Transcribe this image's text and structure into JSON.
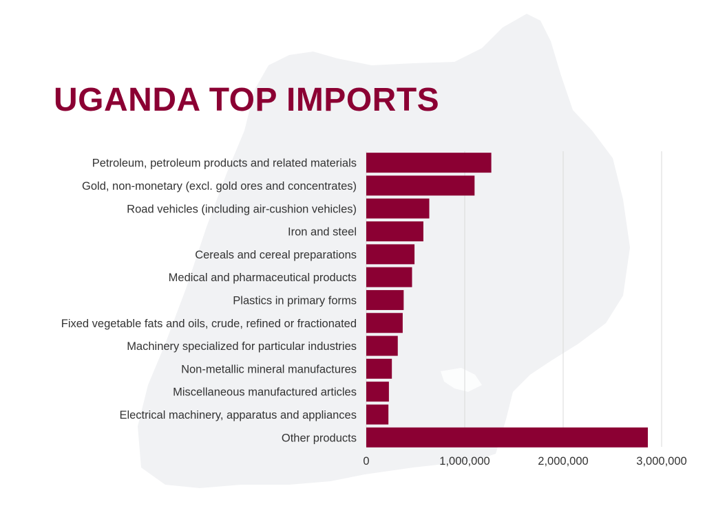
{
  "title": "UGANDA TOP IMPORTS",
  "colors": {
    "title": "#8b0033",
    "bar": "#8b0033",
    "map": "#f1f2f4",
    "text": "#333333"
  },
  "background_image": "uganda-map-silhouette",
  "chart_data": {
    "type": "bar",
    "orientation": "horizontal",
    "title": "UGANDA TOP IMPORTS",
    "xlabel": "",
    "ylabel": "",
    "xlim": [
      0,
      3000000
    ],
    "xticks": [
      0,
      1000000,
      2000000,
      3000000
    ],
    "xtick_labels": [
      "0",
      "1,000,000",
      "2,000,000",
      "3,000,000"
    ],
    "grid": true,
    "legend": "none",
    "categories": [
      "Petroleum, petroleum products and related materials",
      "Gold, non-monetary (excl. gold ores and concentrates)",
      "Road vehicles (including air-cushion vehicles)",
      "Iron and steel",
      "Cereals and cereal preparations",
      "Medical and pharmaceutical products",
      "Plastics in primary forms",
      "Fixed vegetable fats and oils, crude, refined or fractionated",
      "Machinery specialized for particular industries",
      "Non-metallic mineral manufactures",
      "Miscellaneous manufactured articles",
      "Electrical machinery, apparatus and appliances",
      "Other products"
    ],
    "values": [
      1270000,
      1100000,
      640000,
      580000,
      490000,
      465000,
      380000,
      370000,
      320000,
      260000,
      230000,
      225000,
      2860000
    ]
  }
}
